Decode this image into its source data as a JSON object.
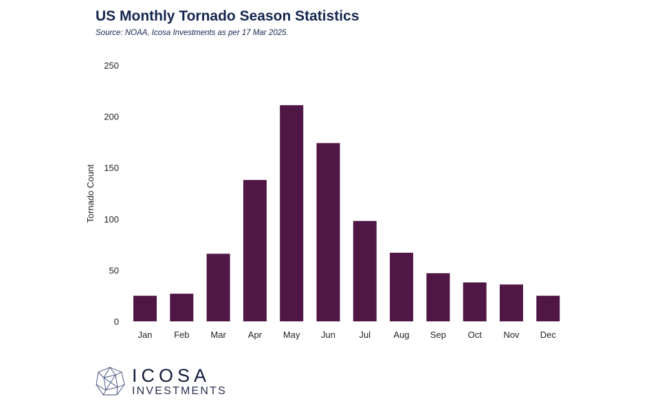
{
  "chart_data": {
    "type": "bar",
    "title": "US Monthly Tornado Season Statistics",
    "subtitle": "Source: NOAA, Icosa Investments as per 17 Mar 2025.",
    "xlabel": "",
    "ylabel": "Tornado Count",
    "ylim": [
      0,
      250
    ],
    "yticks": [
      0,
      50,
      100,
      150,
      200,
      250
    ],
    "categories": [
      "Jan",
      "Feb",
      "Mar",
      "Apr",
      "May",
      "Jun",
      "Jul",
      "Aug",
      "Sep",
      "Oct",
      "Nov",
      "Dec"
    ],
    "values": [
      25,
      27,
      66,
      138,
      211,
      174,
      98,
      67,
      47,
      38,
      36,
      25
    ],
    "grid": false,
    "bar_color": "#4f1646"
  },
  "logo": {
    "name": "ICOSA",
    "tagline": "INVESTMENTS"
  }
}
